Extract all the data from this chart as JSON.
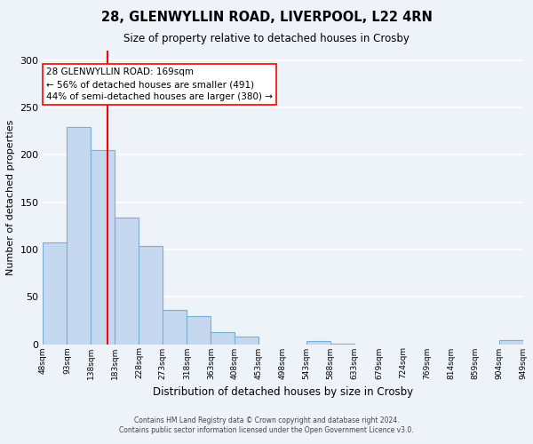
{
  "title": "28, GLENWYLLIN ROAD, LIVERPOOL, L22 4RN",
  "subtitle": "Size of property relative to detached houses in Crosby",
  "xlabel": "Distribution of detached houses by size in Crosby",
  "ylabel": "Number of detached properties",
  "bin_edges": [
    48,
    93,
    138,
    183,
    228,
    273,
    318,
    363,
    408,
    453,
    498,
    543,
    588,
    633,
    679,
    724,
    769,
    814,
    859,
    904,
    949
  ],
  "bin_labels": [
    "48sqm",
    "93sqm",
    "138sqm",
    "183sqm",
    "228sqm",
    "273sqm",
    "318sqm",
    "363sqm",
    "408sqm",
    "453sqm",
    "498sqm",
    "543sqm",
    "588sqm",
    "633sqm",
    "679sqm",
    "724sqm",
    "769sqm",
    "814sqm",
    "859sqm",
    "904sqm",
    "949sqm"
  ],
  "bar_heights": [
    107,
    229,
    205,
    134,
    104,
    36,
    30,
    13,
    8,
    0,
    0,
    3,
    1,
    0,
    0,
    0,
    0,
    0,
    0,
    4
  ],
  "bar_color": "#c5d8f0",
  "bar_edge_color": "#7aafd4",
  "vline_x": 169,
  "vline_color": "red",
  "annotation_text": "28 GLENWYLLIN ROAD: 169sqm\n← 56% of detached houses are smaller (491)\n44% of semi-detached houses are larger (380) →",
  "annotation_box_color": "white",
  "annotation_box_edge": "red",
  "ylim": [
    0,
    310
  ],
  "yticks": [
    0,
    50,
    100,
    150,
    200,
    250,
    300
  ],
  "footer_line1": "Contains HM Land Registry data © Crown copyright and database right 2024.",
  "footer_line2": "Contains public sector information licensed under the Open Government Licence v3.0.",
  "background_color": "#eef2f9",
  "grid_color": "white"
}
